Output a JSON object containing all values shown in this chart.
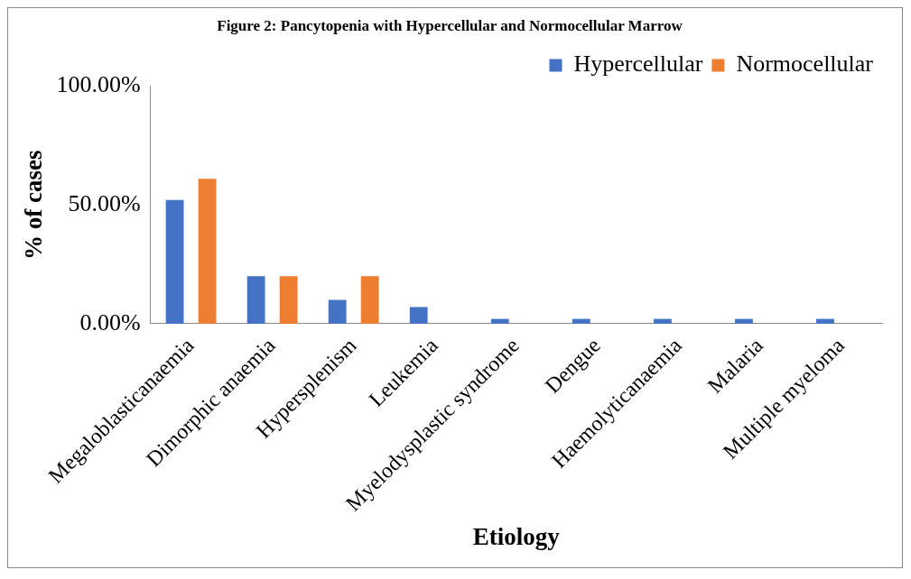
{
  "chart_data": {
    "type": "bar",
    "title": "Figure 2: Pancytopenia with Hypercellular and Normocellular Marrow",
    "xlabel": "Etiology",
    "ylabel": "% of cases",
    "categories": [
      "Megaloblasticanaemia",
      "Dimorphic anaemia",
      "Hypersplenism",
      "Leukemia",
      "Myelodysplastic syndrome",
      "Dengue",
      "Haemolyticanaemia",
      "Malaria",
      "Multiple myeloma"
    ],
    "series": [
      {
        "name": "Hypercellular",
        "color": "#4472c4",
        "values": [
          52,
          20,
          10,
          7,
          2,
          2,
          2,
          2,
          2
        ]
      },
      {
        "name": "Normocellular",
        "color": "#ed7d31",
        "values": [
          61,
          20,
          20,
          0,
          0,
          0,
          0,
          0,
          0
        ]
      }
    ],
    "ylim": [
      0,
      100
    ],
    "yticks": [
      {
        "value": 0,
        "label": "0.00%"
      },
      {
        "value": 50,
        "label": "50.00%"
      },
      {
        "value": 100,
        "label": "100.00%"
      }
    ],
    "grid": false,
    "legend": "top right"
  }
}
